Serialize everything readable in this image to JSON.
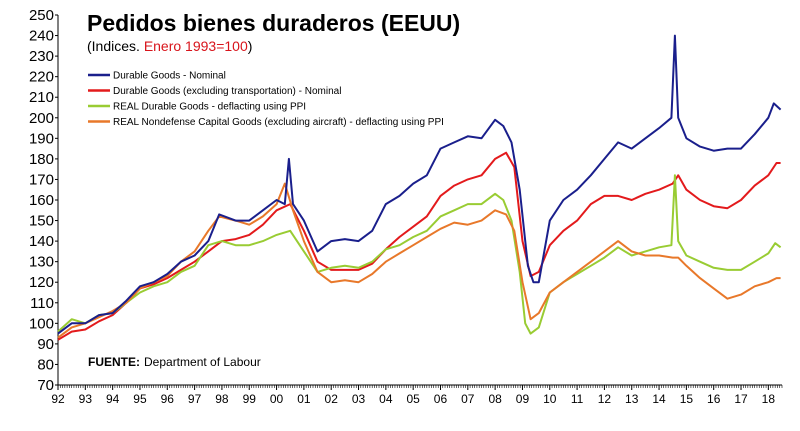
{
  "chart_data": {
    "type": "line",
    "title": "Pedidos bienes duraderos (EEUU)",
    "subtitle_prefix": "(Indices. ",
    "subtitle_highlight": "Enero 1993=100",
    "subtitle_suffix": ")",
    "source_label": "FUENTE:",
    "source_text": "Department of Labour",
    "ylim": [
      70,
      250
    ],
    "yticks": [
      70,
      80,
      90,
      100,
      110,
      120,
      130,
      140,
      150,
      160,
      170,
      180,
      190,
      200,
      210,
      220,
      230,
      240,
      250
    ],
    "ytick_labels": [
      "70",
      "80",
      "90",
      "100",
      "110",
      "120",
      "130",
      "140",
      "150",
      "160",
      "170",
      "180",
      "190",
      "200",
      "210",
      "220",
      "230",
      "240",
      "250"
    ],
    "xlim": [
      1992.0,
      2018.5
    ],
    "xticks": [
      1992,
      1993,
      1994,
      1995,
      1996,
      1997,
      1998,
      1999,
      2000,
      2001,
      2002,
      2003,
      2004,
      2005,
      2006,
      2007,
      2008,
      2009,
      2010,
      2011,
      2012,
      2013,
      2014,
      2015,
      2016,
      2017,
      2018
    ],
    "xtick_labels": [
      "92",
      "93",
      "94",
      "95",
      "96",
      "97",
      "98",
      "99",
      "00",
      "01",
      "02",
      "03",
      "04",
      "05",
      "06",
      "07",
      "08",
      "09",
      "10",
      "11",
      "12",
      "13",
      "14",
      "15",
      "16",
      "17",
      "18"
    ],
    "grid": false,
    "legend_position": "top-left",
    "series": [
      {
        "name": "Durable Goods - Nominal",
        "color": "#1a1f8c",
        "points": [
          [
            1992.0,
            95
          ],
          [
            1992.5,
            100
          ],
          [
            1993.0,
            100
          ],
          [
            1993.5,
            104
          ],
          [
            1994.0,
            105
          ],
          [
            1994.5,
            111
          ],
          [
            1995.0,
            118
          ],
          [
            1995.5,
            120
          ],
          [
            1996.0,
            124
          ],
          [
            1996.5,
            130
          ],
          [
            1997.0,
            133
          ],
          [
            1997.5,
            140
          ],
          [
            1997.9,
            153
          ],
          [
            1998.5,
            150
          ],
          [
            1999.0,
            150
          ],
          [
            1999.5,
            155
          ],
          [
            2000.0,
            160
          ],
          [
            2000.3,
            158
          ],
          [
            2000.45,
            180
          ],
          [
            2000.6,
            158
          ],
          [
            2001.0,
            150
          ],
          [
            2001.5,
            135
          ],
          [
            2002.0,
            140
          ],
          [
            2002.5,
            141
          ],
          [
            2003.0,
            140
          ],
          [
            2003.5,
            145
          ],
          [
            2004.0,
            158
          ],
          [
            2004.5,
            162
          ],
          [
            2005.0,
            168
          ],
          [
            2005.5,
            172
          ],
          [
            2006.0,
            185
          ],
          [
            2006.5,
            188
          ],
          [
            2007.0,
            191
          ],
          [
            2007.5,
            190
          ],
          [
            2008.0,
            199
          ],
          [
            2008.3,
            196
          ],
          [
            2008.6,
            188
          ],
          [
            2008.9,
            165
          ],
          [
            2009.2,
            128
          ],
          [
            2009.4,
            120
          ],
          [
            2009.6,
            120
          ],
          [
            2010.0,
            150
          ],
          [
            2010.5,
            160
          ],
          [
            2011.0,
            165
          ],
          [
            2011.5,
            172
          ],
          [
            2012.0,
            180
          ],
          [
            2012.5,
            188
          ],
          [
            2013.0,
            185
          ],
          [
            2013.5,
            190
          ],
          [
            2014.0,
            195
          ],
          [
            2014.45,
            200
          ],
          [
            2014.58,
            240
          ],
          [
            2014.7,
            200
          ],
          [
            2015.0,
            190
          ],
          [
            2015.5,
            186
          ],
          [
            2016.0,
            184
          ],
          [
            2016.5,
            185
          ],
          [
            2017.0,
            185
          ],
          [
            2017.5,
            192
          ],
          [
            2018.0,
            200
          ],
          [
            2018.2,
            207
          ],
          [
            2018.45,
            204
          ]
        ]
      },
      {
        "name": "Durable Goods (excluding transportation) - Nominal",
        "color": "#e31a1c",
        "points": [
          [
            1992.0,
            92
          ],
          [
            1992.5,
            96
          ],
          [
            1993.0,
            97
          ],
          [
            1993.5,
            101
          ],
          [
            1994.0,
            104
          ],
          [
            1994.5,
            110
          ],
          [
            1995.0,
            117
          ],
          [
            1995.5,
            119
          ],
          [
            1996.0,
            122
          ],
          [
            1996.5,
            126
          ],
          [
            1997.0,
            130
          ],
          [
            1997.5,
            135
          ],
          [
            1998.0,
            140
          ],
          [
            1998.5,
            141
          ],
          [
            1999.0,
            143
          ],
          [
            1999.5,
            148
          ],
          [
            2000.0,
            155
          ],
          [
            2000.5,
            158
          ],
          [
            2001.0,
            145
          ],
          [
            2001.5,
            130
          ],
          [
            2002.0,
            126
          ],
          [
            2002.5,
            126
          ],
          [
            2003.0,
            126
          ],
          [
            2003.5,
            129
          ],
          [
            2004.0,
            136
          ],
          [
            2004.5,
            142
          ],
          [
            2005.0,
            147
          ],
          [
            2005.5,
            152
          ],
          [
            2006.0,
            162
          ],
          [
            2006.5,
            167
          ],
          [
            2007.0,
            170
          ],
          [
            2007.5,
            172
          ],
          [
            2008.0,
            180
          ],
          [
            2008.4,
            183
          ],
          [
            2008.7,
            176
          ],
          [
            2009.0,
            140
          ],
          [
            2009.3,
            123
          ],
          [
            2009.6,
            125
          ],
          [
            2010.0,
            138
          ],
          [
            2010.5,
            145
          ],
          [
            2011.0,
            150
          ],
          [
            2011.5,
            158
          ],
          [
            2012.0,
            162
          ],
          [
            2012.5,
            162
          ],
          [
            2013.0,
            160
          ],
          [
            2013.5,
            163
          ],
          [
            2014.0,
            165
          ],
          [
            2014.5,
            168
          ],
          [
            2014.7,
            172
          ],
          [
            2015.0,
            165
          ],
          [
            2015.5,
            160
          ],
          [
            2016.0,
            157
          ],
          [
            2016.5,
            156
          ],
          [
            2017.0,
            160
          ],
          [
            2017.5,
            167
          ],
          [
            2018.0,
            172
          ],
          [
            2018.3,
            178
          ],
          [
            2018.45,
            178
          ]
        ]
      },
      {
        "name": "REAL Durable Goods - deflacting using PPI",
        "color": "#99cc33",
        "points": [
          [
            1992.0,
            96
          ],
          [
            1992.5,
            102
          ],
          [
            1993.0,
            100
          ],
          [
            1993.5,
            104
          ],
          [
            1994.0,
            105
          ],
          [
            1994.5,
            110
          ],
          [
            1995.0,
            115
          ],
          [
            1995.5,
            118
          ],
          [
            1996.0,
            120
          ],
          [
            1996.5,
            125
          ],
          [
            1997.0,
            128
          ],
          [
            1997.5,
            138
          ],
          [
            1998.0,
            140
          ],
          [
            1998.5,
            138
          ],
          [
            1999.0,
            138
          ],
          [
            1999.5,
            140
          ],
          [
            2000.0,
            143
          ],
          [
            2000.5,
            145
          ],
          [
            2001.0,
            135
          ],
          [
            2001.5,
            125
          ],
          [
            2002.0,
            127
          ],
          [
            2002.5,
            128
          ],
          [
            2003.0,
            127
          ],
          [
            2003.5,
            130
          ],
          [
            2004.0,
            136
          ],
          [
            2004.5,
            138
          ],
          [
            2005.0,
            142
          ],
          [
            2005.5,
            145
          ],
          [
            2006.0,
            152
          ],
          [
            2006.5,
            155
          ],
          [
            2007.0,
            158
          ],
          [
            2007.5,
            158
          ],
          [
            2008.0,
            163
          ],
          [
            2008.3,
            160
          ],
          [
            2008.6,
            150
          ],
          [
            2008.9,
            125
          ],
          [
            2009.1,
            100
          ],
          [
            2009.3,
            95
          ],
          [
            2009.6,
            98
          ],
          [
            2010.0,
            115
          ],
          [
            2010.5,
            120
          ],
          [
            2011.0,
            124
          ],
          [
            2011.5,
            128
          ],
          [
            2012.0,
            132
          ],
          [
            2012.5,
            137
          ],
          [
            2013.0,
            133
          ],
          [
            2013.5,
            135
          ],
          [
            2014.0,
            137
          ],
          [
            2014.45,
            138
          ],
          [
            2014.58,
            172
          ],
          [
            2014.7,
            140
          ],
          [
            2015.0,
            133
          ],
          [
            2015.5,
            130
          ],
          [
            2016.0,
            127
          ],
          [
            2016.5,
            126
          ],
          [
            2017.0,
            126
          ],
          [
            2017.5,
            130
          ],
          [
            2018.0,
            134
          ],
          [
            2018.25,
            139
          ],
          [
            2018.45,
            137
          ]
        ]
      },
      {
        "name": "REAL Nondefense Capital Goods (excluding aircraft) - deflacting using PPI",
        "color": "#e8782a",
        "points": [
          [
            1992.0,
            93
          ],
          [
            1992.5,
            98
          ],
          [
            1993.0,
            100
          ],
          [
            1993.5,
            103
          ],
          [
            1994.0,
            106
          ],
          [
            1994.5,
            110
          ],
          [
            1995.0,
            117
          ],
          [
            1995.5,
            120
          ],
          [
            1996.0,
            123
          ],
          [
            1996.5,
            130
          ],
          [
            1997.0,
            135
          ],
          [
            1997.5,
            145
          ],
          [
            1997.9,
            152
          ],
          [
            1998.5,
            150
          ],
          [
            1999.0,
            148
          ],
          [
            1999.5,
            152
          ],
          [
            2000.0,
            158
          ],
          [
            2000.3,
            168
          ],
          [
            2000.6,
            155
          ],
          [
            2001.0,
            140
          ],
          [
            2001.5,
            125
          ],
          [
            2002.0,
            120
          ],
          [
            2002.5,
            121
          ],
          [
            2003.0,
            120
          ],
          [
            2003.5,
            124
          ],
          [
            2004.0,
            130
          ],
          [
            2004.5,
            134
          ],
          [
            2005.0,
            138
          ],
          [
            2005.5,
            142
          ],
          [
            2006.0,
            146
          ],
          [
            2006.5,
            149
          ],
          [
            2007.0,
            148
          ],
          [
            2007.5,
            150
          ],
          [
            2008.0,
            155
          ],
          [
            2008.4,
            153
          ],
          [
            2008.7,
            145
          ],
          [
            2009.0,
            120
          ],
          [
            2009.3,
            102
          ],
          [
            2009.6,
            105
          ],
          [
            2010.0,
            115
          ],
          [
            2010.5,
            120
          ],
          [
            2011.0,
            125
          ],
          [
            2011.5,
            130
          ],
          [
            2012.0,
            135
          ],
          [
            2012.5,
            140
          ],
          [
            2013.0,
            135
          ],
          [
            2013.5,
            133
          ],
          [
            2014.0,
            133
          ],
          [
            2014.5,
            132
          ],
          [
            2014.7,
            132
          ],
          [
            2015.0,
            128
          ],
          [
            2015.5,
            122
          ],
          [
            2016.0,
            117
          ],
          [
            2016.5,
            112
          ],
          [
            2017.0,
            114
          ],
          [
            2017.5,
            118
          ],
          [
            2018.0,
            120
          ],
          [
            2018.3,
            122
          ],
          [
            2018.45,
            122
          ]
        ]
      }
    ]
  }
}
